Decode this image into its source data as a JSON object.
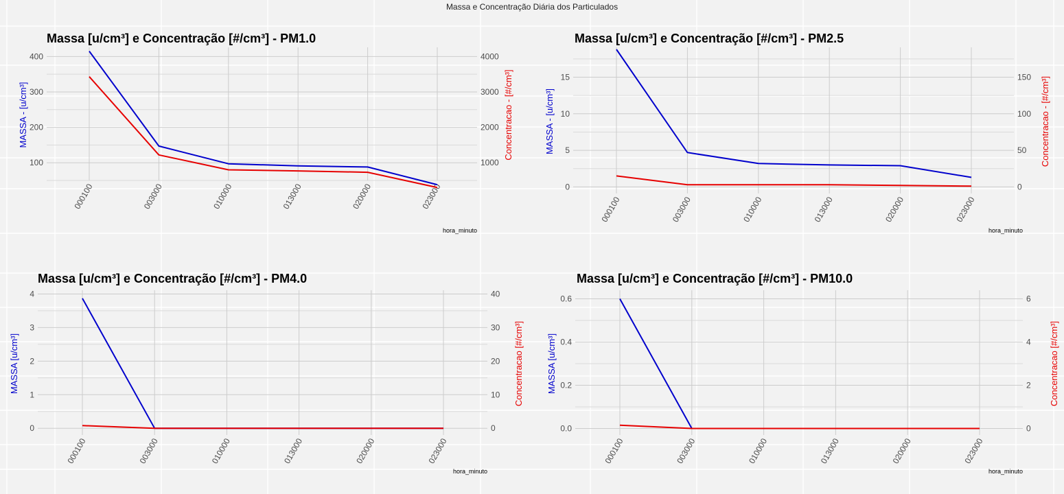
{
  "title": "Massa e Concentração Diária dos Particulados",
  "colors": {
    "mass_line": "#0000cc",
    "conc_line": "#e60000",
    "mass_axis_label": "#0000cc",
    "conc_axis_label": "#e60000",
    "panel_bg": "#f2f2f2",
    "grid_major": "#cccccc",
    "grid_minor": "#dadada"
  },
  "chart_data": [
    {
      "type": "line",
      "title": "Massa [u/cm³] e Concentração [#/cm³] - PM1.0",
      "xlabel": "hora_minuto",
      "ylabel_left": "MASSA - [u/cm³]",
      "ylabel_right": "Concentracao - [#/cm³]",
      "categories": [
        "000100",
        "003000",
        "010000",
        "013000",
        "020000",
        "023000"
      ],
      "left_ticks": [
        100,
        200,
        300,
        400
      ],
      "right_ticks": [
        1000,
        2000,
        3000,
        4000
      ],
      "ylim_left": [
        50,
        420
      ],
      "ylim_right": [
        500,
        4200
      ],
      "series": [
        {
          "axis": "left",
          "color": "#0000cc",
          "values": [
            415,
            147,
            97,
            91,
            88,
            38
          ]
        },
        {
          "axis": "right",
          "color": "#e60000",
          "values": [
            3430,
            1220,
            800,
            770,
            730,
            300
          ]
        }
      ],
      "grid": true
    },
    {
      "type": "line",
      "title": "Massa [u/cm³] e Concentração [#/cm³] - PM2.5",
      "xlabel": "hora_minuto",
      "ylabel_left": "MASSA - [u/cm³]",
      "ylabel_right": "Concentracao - [#/cm³]",
      "categories": [
        "000100",
        "003000",
        "010000",
        "013000",
        "020000",
        "023000"
      ],
      "left_ticks": [
        0,
        5,
        10,
        15
      ],
      "right_ticks": [
        0,
        50,
        100,
        150
      ],
      "ylim_left": [
        -0.9,
        18.8
      ],
      "ylim_right": [
        -9,
        188
      ],
      "series": [
        {
          "axis": "left",
          "color": "#0000cc",
          "values": [
            18.8,
            4.7,
            3.2,
            3.0,
            2.9,
            1.3
          ]
        },
        {
          "axis": "right",
          "color": "#e60000",
          "values": [
            15,
            3,
            3,
            3,
            2,
            1
          ]
        }
      ],
      "grid": true
    },
    {
      "type": "line",
      "title": "Massa [u/cm³] e Concentração [#/cm³] - PM4.0",
      "xlabel": "hora_minuto",
      "ylabel_left": "MASSA [u/cm³]",
      "ylabel_right": "Concentracao [#/cm³]",
      "categories": [
        "000100",
        "003000",
        "010000",
        "013000",
        "020000",
        "023000"
      ],
      "left_ticks": [
        0,
        1,
        2,
        3,
        4
      ],
      "right_ticks": [
        0,
        10,
        20,
        30,
        40
      ],
      "ylim_left": [
        -0.2,
        4.05
      ],
      "ylim_right": [
        -2,
        40.5
      ],
      "series": [
        {
          "axis": "left",
          "color": "#0000cc",
          "values": [
            3.87,
            0,
            0,
            0,
            0,
            0
          ]
        },
        {
          "axis": "right",
          "color": "#e60000",
          "values": [
            0.8,
            0,
            0,
            0,
            0,
            0
          ]
        }
      ],
      "grid": true
    },
    {
      "type": "line",
      "title": "Massa [u/cm³] e Concentração [#/cm³] - PM10.0",
      "xlabel": "hora_minuto",
      "ylabel_left": "MASSA [u/cm³]",
      "ylabel_right": "Concentracao [#/cm³]",
      "categories": [
        "000100",
        "003000",
        "010000",
        "013000",
        "020000",
        "023000"
      ],
      "left_ticks": [
        0.0,
        0.2,
        0.4,
        0.6
      ],
      "right_ticks": [
        0,
        2,
        4,
        6
      ],
      "ylim_left": [
        -0.03,
        0.63
      ],
      "ylim_right": [
        -0.3,
        6.3
      ],
      "series": [
        {
          "axis": "left",
          "color": "#0000cc",
          "values": [
            0.6,
            0,
            0,
            0,
            0,
            0
          ]
        },
        {
          "axis": "right",
          "color": "#e60000",
          "values": [
            0.15,
            0,
            0,
            0,
            0,
            0
          ]
        }
      ],
      "grid": true
    }
  ]
}
